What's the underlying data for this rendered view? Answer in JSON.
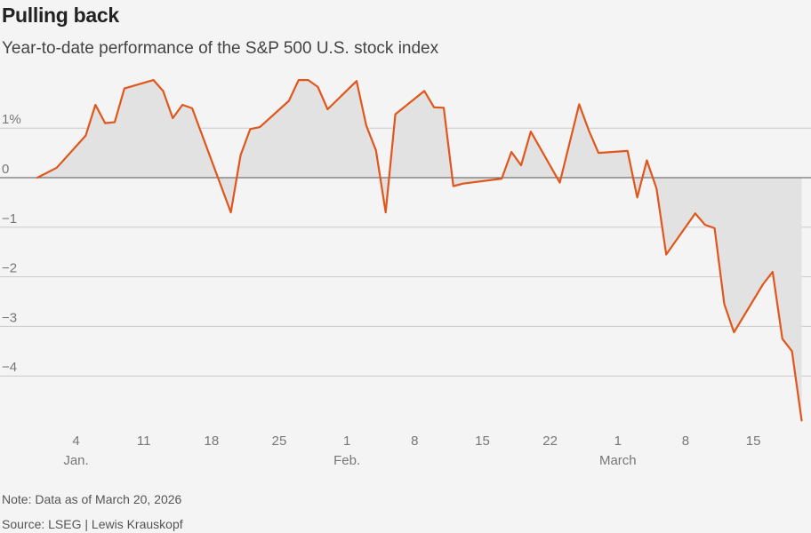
{
  "title": "Pulling back",
  "subtitle": "Year-to-date performance of the S&P 500 U.S. stock index",
  "note": "Note: Data as of March 20, 2026",
  "source": "Source: LSEG | Lewis Krauskopf",
  "colors": {
    "line": "#e0561b",
    "area": "#e2e2e2",
    "grid": "#c9c9c9",
    "zero": "#555555",
    "tick": "#777777"
  },
  "chart_data": {
    "type": "area",
    "title": "Pulling back",
    "ylabel": "",
    "xlabel": "",
    "ylim": [
      -5,
      2
    ],
    "xlim": [
      "2026-01-01",
      "2026-03-20"
    ],
    "y_ticks": [
      {
        "value": 1,
        "label": "1%"
      },
      {
        "value": 0,
        "label": "0"
      },
      {
        "value": -1,
        "label": "−1"
      },
      {
        "value": -2,
        "label": "−2"
      },
      {
        "value": -3,
        "label": "−3"
      },
      {
        "value": -4,
        "label": "−4"
      }
    ],
    "x_ticks": [
      {
        "day": 4,
        "label": "4",
        "month": "Jan."
      },
      {
        "day": 11,
        "label": "11"
      },
      {
        "day": 18,
        "label": "18"
      },
      {
        "day": 25,
        "label": "25"
      },
      {
        "day": 32,
        "label": "1",
        "month": "Feb."
      },
      {
        "day": 39,
        "label": "8"
      },
      {
        "day": 46,
        "label": "15"
      },
      {
        "day": 53,
        "label": "22"
      },
      {
        "day": 60,
        "label": "1",
        "month": "March"
      },
      {
        "day": 67,
        "label": "8"
      },
      {
        "day": 74,
        "label": "15"
      }
    ],
    "series": [
      {
        "name": "S&P 500 YTD % change",
        "points": [
          {
            "day": 0,
            "value": 0
          },
          {
            "day": 2,
            "value": 0.2
          },
          {
            "day": 5,
            "value": 0.85
          },
          {
            "day": 6,
            "value": 1.47
          },
          {
            "day": 7,
            "value": 1.1
          },
          {
            "day": 8,
            "value": 1.12
          },
          {
            "day": 9,
            "value": 1.8
          },
          {
            "day": 12,
            "value": 1.97
          },
          {
            "day": 13,
            "value": 1.75
          },
          {
            "day": 14,
            "value": 1.2
          },
          {
            "day": 15,
            "value": 1.47
          },
          {
            "day": 16,
            "value": 1.4
          },
          {
            "day": 20,
            "value": -0.7
          },
          {
            "day": 21,
            "value": 0.45
          },
          {
            "day": 22,
            "value": 0.98
          },
          {
            "day": 23,
            "value": 1.02
          },
          {
            "day": 26,
            "value": 1.55
          },
          {
            "day": 27,
            "value": 1.97
          },
          {
            "day": 28,
            "value": 1.97
          },
          {
            "day": 29,
            "value": 1.83
          },
          {
            "day": 30,
            "value": 1.38
          },
          {
            "day": 33,
            "value": 1.95
          },
          {
            "day": 34,
            "value": 1.05
          },
          {
            "day": 35,
            "value": 0.55
          },
          {
            "day": 36,
            "value": -0.7
          },
          {
            "day": 37,
            "value": 1.28
          },
          {
            "day": 40,
            "value": 1.75
          },
          {
            "day": 41,
            "value": 1.42
          },
          {
            "day": 42,
            "value": 1.41
          },
          {
            "day": 43,
            "value": -0.17
          },
          {
            "day": 44,
            "value": -0.12
          },
          {
            "day": 48,
            "value": -0.02
          },
          {
            "day": 49,
            "value": 0.52
          },
          {
            "day": 50,
            "value": 0.25
          },
          {
            "day": 51,
            "value": 0.93
          },
          {
            "day": 54,
            "value": -0.1
          },
          {
            "day": 56,
            "value": 1.48
          },
          {
            "day": 57,
            "value": 0.95
          },
          {
            "day": 58,
            "value": 0.5
          },
          {
            "day": 61,
            "value": 0.54
          },
          {
            "day": 62,
            "value": -0.4
          },
          {
            "day": 63,
            "value": 0.35
          },
          {
            "day": 64,
            "value": -0.22
          },
          {
            "day": 65,
            "value": -1.55
          },
          {
            "day": 68,
            "value": -0.72
          },
          {
            "day": 69,
            "value": -0.95
          },
          {
            "day": 70,
            "value": -1.02
          },
          {
            "day": 71,
            "value": -2.55
          },
          {
            "day": 72,
            "value": -3.12
          },
          {
            "day": 75,
            "value": -2.15
          },
          {
            "day": 76,
            "value": -1.9
          },
          {
            "day": 77,
            "value": -3.25
          },
          {
            "day": 78,
            "value": -3.5
          },
          {
            "day": 79,
            "value": -4.9
          }
        ]
      }
    ]
  }
}
